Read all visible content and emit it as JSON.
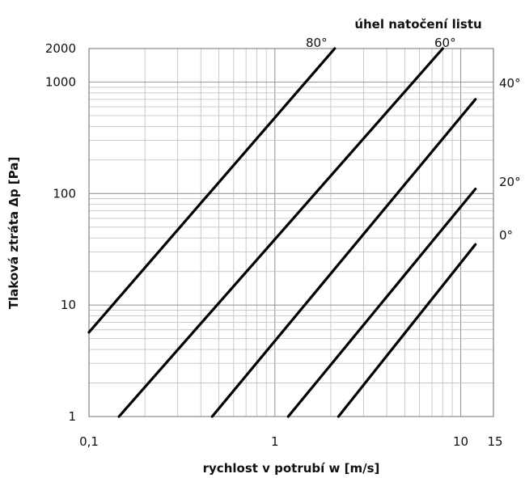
{
  "chart_data": {
    "type": "line",
    "title": "",
    "xlabel": "rychlost v potrubí w [m/s]",
    "ylabel": "Tlaková ztráta Δp [Pa]",
    "series_title": "úhel natočení listu",
    "x_scale": "log",
    "y_scale": "log",
    "xlim": [
      0.1,
      15
    ],
    "ylim": [
      1,
      2000
    ],
    "x_ticks": [
      {
        "value": 0.1,
        "label": "0,1"
      },
      {
        "value": 1,
        "label": "1"
      },
      {
        "value": 10,
        "label": "10"
      },
      {
        "value": 15,
        "label": "15"
      }
    ],
    "y_ticks": [
      {
        "value": 1,
        "label": "1"
      },
      {
        "value": 10,
        "label": "10"
      },
      {
        "value": 100,
        "label": "100"
      },
      {
        "value": 1000,
        "label": "1000"
      },
      {
        "value": 2000,
        "label": "2000"
      }
    ],
    "grid": true,
    "series": [
      {
        "name": "80°",
        "x": [
          0.1,
          2.1
        ],
        "y": [
          5.7,
          2000
        ]
      },
      {
        "name": "60°",
        "x": [
          0.145,
          8.0
        ],
        "y": [
          1,
          2000
        ]
      },
      {
        "name": "40°",
        "x": [
          0.46,
          12.0
        ],
        "y": [
          1,
          700
        ]
      },
      {
        "name": "20°",
        "x": [
          1.18,
          12.0
        ],
        "y": [
          1,
          110
        ]
      },
      {
        "name": "0°",
        "x": [
          2.2,
          12.0
        ],
        "y": [
          1,
          35
        ]
      }
    ]
  },
  "colors": {
    "curve": "#000000",
    "grid_major": "#9a9a9a",
    "grid_minor": "#c4c4c4"
  }
}
